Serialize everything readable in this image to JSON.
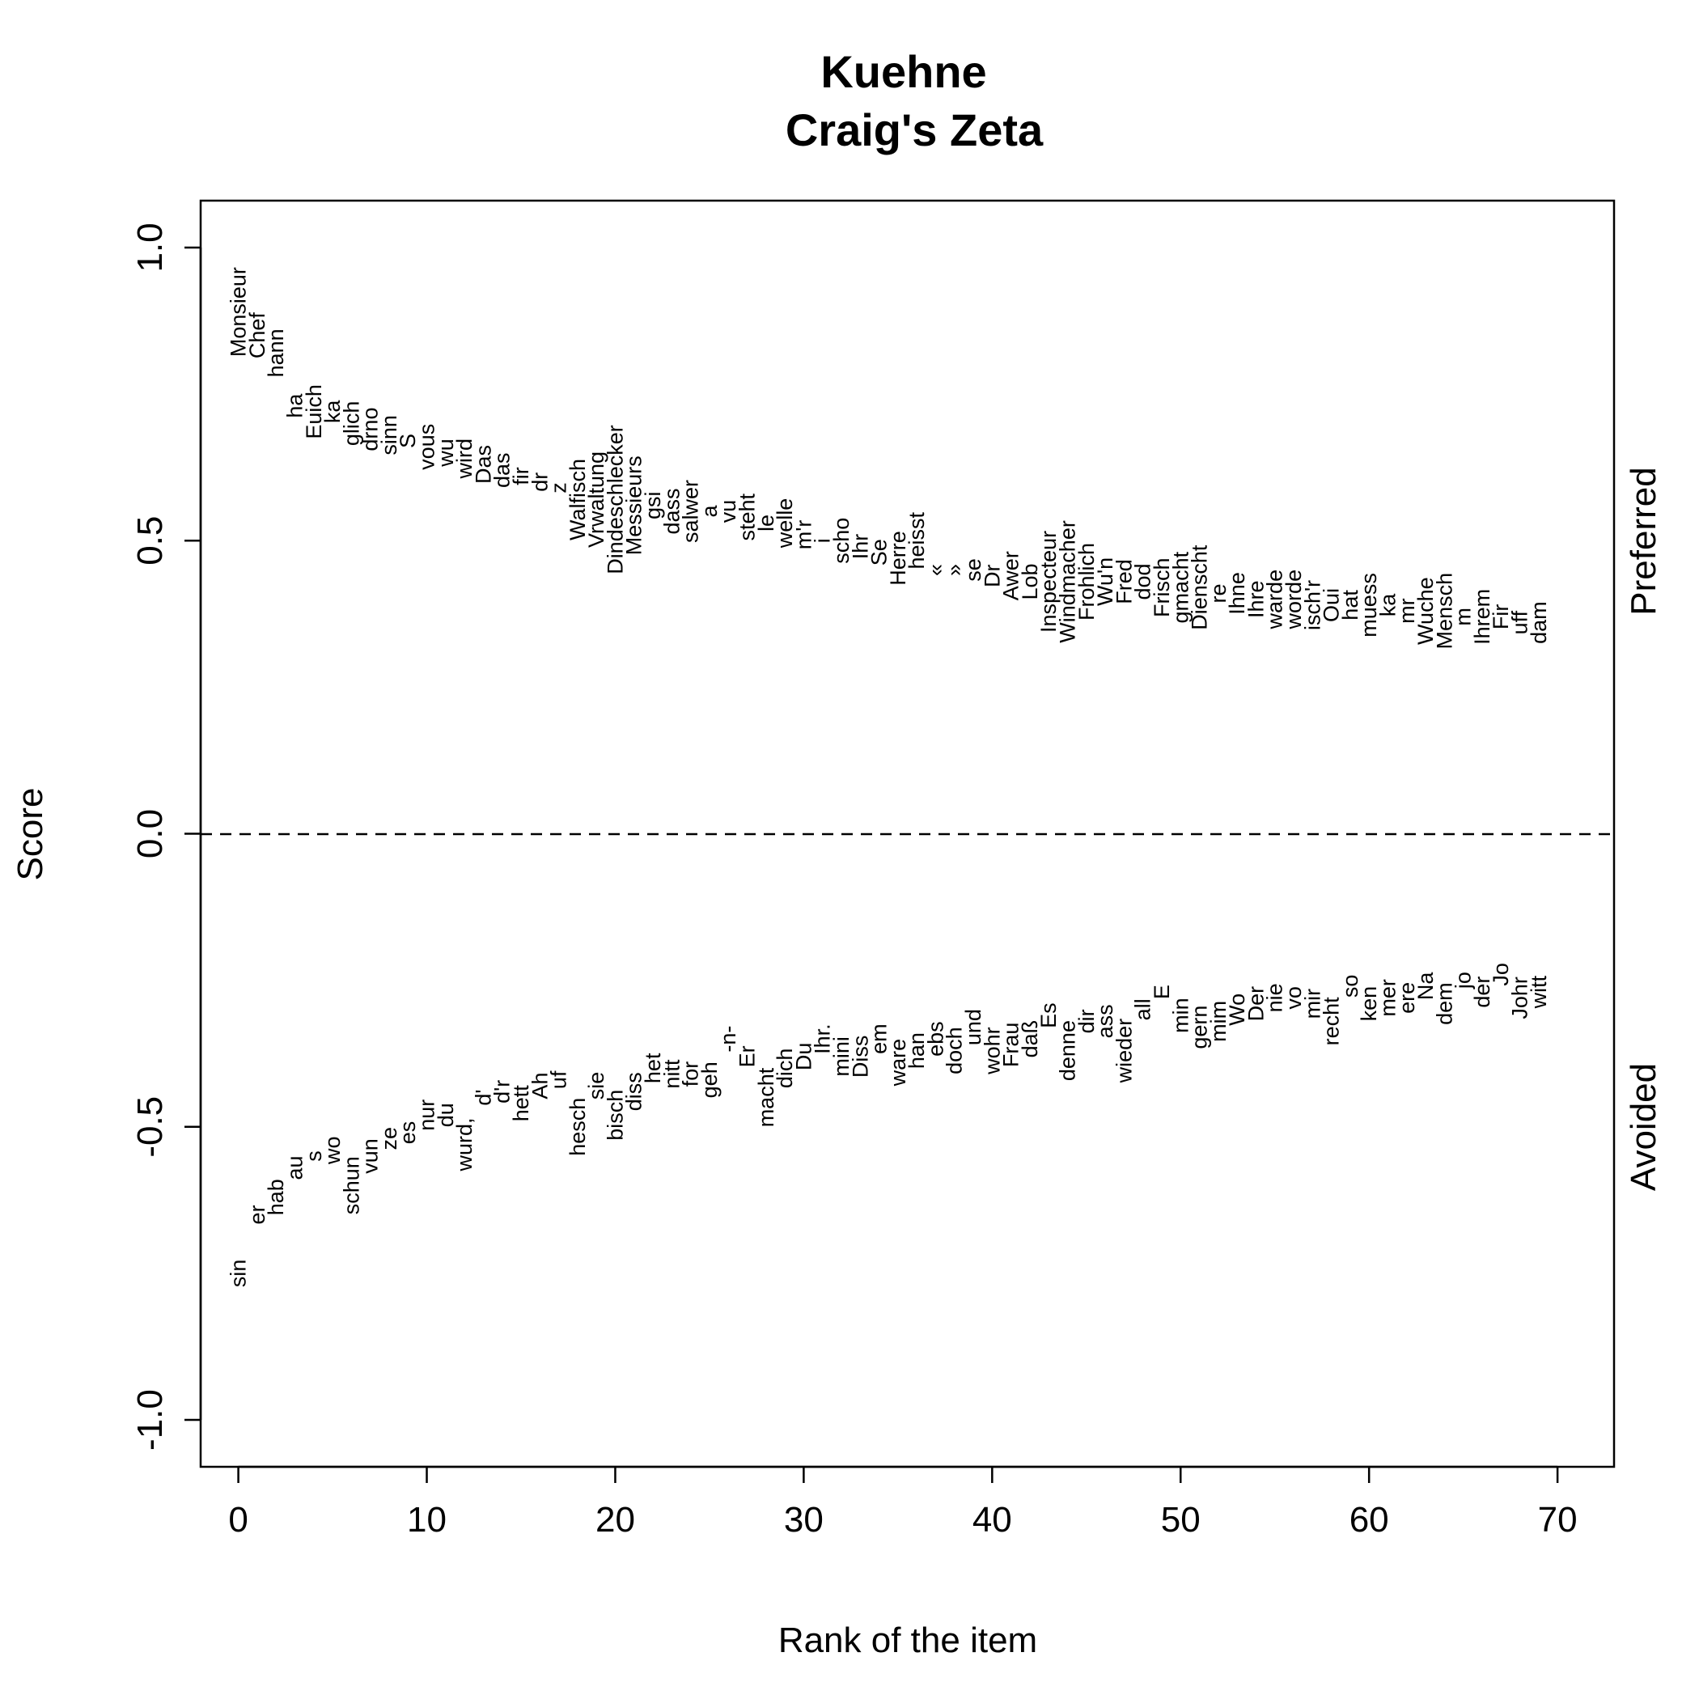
{
  "chart_data": {
    "type": "scatter",
    "title": "Kuehne",
    "subtitle": "Craig's Zeta",
    "xlabel": "Rank of the item",
    "ylabel": "Score",
    "right_labels": {
      "top": "Preferred",
      "bottom": "Avoided"
    },
    "xlim": [
      -2,
      73
    ],
    "ylim": [
      -1.08,
      1.08
    ],
    "x_ticks": [
      0,
      10,
      20,
      30,
      40,
      50,
      60,
      70
    ],
    "x_tick_labels": [
      "0",
      "10",
      "20",
      "30",
      "40",
      "50",
      "60",
      "70"
    ],
    "y_ticks": [
      -1.0,
      -0.5,
      0.0,
      0.5,
      1.0
    ],
    "y_tick_labels": [
      "-1.0",
      "-0.5",
      "0.0",
      "0.5",
      "1.0"
    ],
    "reference_line": {
      "y": 0,
      "style": "dashed"
    },
    "series": [
      {
        "name": "Preferred",
        "points": [
          {
            "x": 0,
            "y": 0.89,
            "label": "Monsieur"
          },
          {
            "x": 1,
            "y": 0.85,
            "label": "Chef"
          },
          {
            "x": 2,
            "y": 0.82,
            "label": "hann"
          },
          {
            "x": 3,
            "y": 0.73,
            "label": "ha"
          },
          {
            "x": 4,
            "y": 0.72,
            "label": "Euich"
          },
          {
            "x": 5,
            "y": 0.72,
            "label": "ka"
          },
          {
            "x": 6,
            "y": 0.7,
            "label": "glich"
          },
          {
            "x": 7,
            "y": 0.69,
            "label": "drno"
          },
          {
            "x": 8,
            "y": 0.68,
            "label": "sinn"
          },
          {
            "x": 9,
            "y": 0.67,
            "label": "S"
          },
          {
            "x": 10,
            "y": 0.66,
            "label": "vous"
          },
          {
            "x": 11,
            "y": 0.65,
            "label": "wu"
          },
          {
            "x": 12,
            "y": 0.64,
            "label": "wird"
          },
          {
            "x": 13,
            "y": 0.63,
            "label": "Das"
          },
          {
            "x": 14,
            "y": 0.62,
            "label": "das"
          },
          {
            "x": 15,
            "y": 0.61,
            "label": "fir"
          },
          {
            "x": 16,
            "y": 0.6,
            "label": "dr"
          },
          {
            "x": 17,
            "y": 0.59,
            "label": "z"
          },
          {
            "x": 18,
            "y": 0.57,
            "label": "Walfisch"
          },
          {
            "x": 19,
            "y": 0.57,
            "label": "Vrwaltung"
          },
          {
            "x": 20,
            "y": 0.57,
            "label": "Dindeschlecker"
          },
          {
            "x": 21,
            "y": 0.56,
            "label": "Messieurs"
          },
          {
            "x": 22,
            "y": 0.56,
            "label": "gsi"
          },
          {
            "x": 23,
            "y": 0.55,
            "label": "dass"
          },
          {
            "x": 24,
            "y": 0.55,
            "label": "salwer"
          },
          {
            "x": 25,
            "y": 0.55,
            "label": "a"
          },
          {
            "x": 26,
            "y": 0.55,
            "label": "vu"
          },
          {
            "x": 27,
            "y": 0.54,
            "label": "steht"
          },
          {
            "x": 28,
            "y": 0.53,
            "label": "le"
          },
          {
            "x": 29,
            "y": 0.53,
            "label": "welle"
          },
          {
            "x": 30,
            "y": 0.51,
            "label": "m'r"
          },
          {
            "x": 31,
            "y": 0.5,
            "label": "i"
          },
          {
            "x": 32,
            "y": 0.5,
            "label": "scho"
          },
          {
            "x": 33,
            "y": 0.49,
            "label": "Ihr"
          },
          {
            "x": 34,
            "y": 0.48,
            "label": "Se"
          },
          {
            "x": 35,
            "y": 0.47,
            "label": "Herre"
          },
          {
            "x": 36,
            "y": 0.5,
            "label": "heisst"
          },
          {
            "x": 37,
            "y": 0.45,
            "label": "«"
          },
          {
            "x": 38,
            "y": 0.45,
            "label": "»"
          },
          {
            "x": 39,
            "y": 0.45,
            "label": "se"
          },
          {
            "x": 40,
            "y": 0.44,
            "label": "Dr"
          },
          {
            "x": 41,
            "y": 0.44,
            "label": "Awer"
          },
          {
            "x": 42,
            "y": 0.43,
            "label": "Lob"
          },
          {
            "x": 43,
            "y": 0.43,
            "label": "Inspecteur"
          },
          {
            "x": 44,
            "y": 0.43,
            "label": "Windmacher"
          },
          {
            "x": 45,
            "y": 0.43,
            "label": "Frohlich"
          },
          {
            "x": 46,
            "y": 0.43,
            "label": "Wu'n"
          },
          {
            "x": 47,
            "y": 0.43,
            "label": "Fred"
          },
          {
            "x": 48,
            "y": 0.43,
            "label": "dod"
          },
          {
            "x": 49,
            "y": 0.42,
            "label": "Frisch"
          },
          {
            "x": 50,
            "y": 0.42,
            "label": "gmacht"
          },
          {
            "x": 51,
            "y": 0.42,
            "label": "Dienscht"
          },
          {
            "x": 52,
            "y": 0.41,
            "label": "re"
          },
          {
            "x": 53,
            "y": 0.41,
            "label": "Ihne"
          },
          {
            "x": 54,
            "y": 0.4,
            "label": "Ihre"
          },
          {
            "x": 55,
            "y": 0.4,
            "label": "warde"
          },
          {
            "x": 56,
            "y": 0.4,
            "label": "worde"
          },
          {
            "x": 57,
            "y": 0.39,
            "label": "isch'r"
          },
          {
            "x": 58,
            "y": 0.39,
            "label": "Oui"
          },
          {
            "x": 59,
            "y": 0.39,
            "label": "hat"
          },
          {
            "x": 60,
            "y": 0.39,
            "label": "muess"
          },
          {
            "x": 61,
            "y": 0.39,
            "label": "ka"
          },
          {
            "x": 62,
            "y": 0.38,
            "label": "mr"
          },
          {
            "x": 63,
            "y": 0.38,
            "label": "Wuche"
          },
          {
            "x": 64,
            "y": 0.38,
            "label": "Mensch"
          },
          {
            "x": 65,
            "y": 0.37,
            "label": "m"
          },
          {
            "x": 66,
            "y": 0.37,
            "label": "Ihrem"
          },
          {
            "x": 67,
            "y": 0.37,
            "label": "Fir"
          },
          {
            "x": 68,
            "y": 0.36,
            "label": "uff"
          },
          {
            "x": 69,
            "y": 0.36,
            "label": "dam"
          }
        ]
      },
      {
        "name": "Avoided",
        "points": [
          {
            "x": 0,
            "y": -0.75,
            "label": "sin"
          },
          {
            "x": 1,
            "y": -0.65,
            "label": "er"
          },
          {
            "x": 2,
            "y": -0.62,
            "label": "hab"
          },
          {
            "x": 3,
            "y": -0.57,
            "label": "au"
          },
          {
            "x": 4,
            "y": -0.55,
            "label": "s"
          },
          {
            "x": 5,
            "y": -0.54,
            "label": "wo"
          },
          {
            "x": 6,
            "y": -0.6,
            "label": "schun"
          },
          {
            "x": 7,
            "y": -0.55,
            "label": "vun"
          },
          {
            "x": 8,
            "y": -0.52,
            "label": "ze"
          },
          {
            "x": 9,
            "y": -0.51,
            "label": "es"
          },
          {
            "x": 10,
            "y": -0.48,
            "label": "nur"
          },
          {
            "x": 11,
            "y": -0.48,
            "label": "du"
          },
          {
            "x": 12,
            "y": -0.53,
            "label": "wurd,"
          },
          {
            "x": 13,
            "y": -0.45,
            "label": "d'"
          },
          {
            "x": 14,
            "y": -0.44,
            "label": "d'r"
          },
          {
            "x": 15,
            "y": -0.46,
            "label": "hett"
          },
          {
            "x": 16,
            "y": -0.43,
            "label": "Ah"
          },
          {
            "x": 17,
            "y": -0.42,
            "label": "uf"
          },
          {
            "x": 18,
            "y": -0.5,
            "label": "hesch"
          },
          {
            "x": 19,
            "y": -0.43,
            "label": "sie"
          },
          {
            "x": 20,
            "y": -0.48,
            "label": "bisch"
          },
          {
            "x": 21,
            "y": -0.44,
            "label": "diss"
          },
          {
            "x": 22,
            "y": -0.4,
            "label": "het"
          },
          {
            "x": 23,
            "y": -0.41,
            "label": "nitt"
          },
          {
            "x": 24,
            "y": -0.41,
            "label": "for"
          },
          {
            "x": 25,
            "y": -0.42,
            "label": "geh"
          },
          {
            "x": 26,
            "y": -0.35,
            "label": "-n-"
          },
          {
            "x": 27,
            "y": -0.38,
            "label": "Er"
          },
          {
            "x": 28,
            "y": -0.45,
            "label": "macht"
          },
          {
            "x": 29,
            "y": -0.4,
            "label": "dich"
          },
          {
            "x": 30,
            "y": -0.38,
            "label": "Du"
          },
          {
            "x": 31,
            "y": -0.35,
            "label": "Ihr."
          },
          {
            "x": 32,
            "y": -0.38,
            "label": "mini"
          },
          {
            "x": 33,
            "y": -0.38,
            "label": "Diss"
          },
          {
            "x": 34,
            "y": -0.35,
            "label": "em"
          },
          {
            "x": 35,
            "y": -0.39,
            "label": "ware"
          },
          {
            "x": 36,
            "y": -0.37,
            "label": "han"
          },
          {
            "x": 37,
            "y": -0.35,
            "label": "ebs"
          },
          {
            "x": 38,
            "y": -0.37,
            "label": "doch"
          },
          {
            "x": 39,
            "y": -0.33,
            "label": "und"
          },
          {
            "x": 40,
            "y": -0.37,
            "label": "wohr"
          },
          {
            "x": 41,
            "y": -0.36,
            "label": "Frau"
          },
          {
            "x": 42,
            "y": -0.35,
            "label": "daß"
          },
          {
            "x": 43,
            "y": -0.31,
            "label": "Es"
          },
          {
            "x": 44,
            "y": -0.37,
            "label": "denne"
          },
          {
            "x": 45,
            "y": -0.32,
            "label": "dir"
          },
          {
            "x": 46,
            "y": -0.32,
            "label": "ass"
          },
          {
            "x": 47,
            "y": -0.37,
            "label": "wieder"
          },
          {
            "x": 48,
            "y": -0.3,
            "label": "all"
          },
          {
            "x": 49,
            "y": -0.27,
            "label": "E"
          },
          {
            "x": 50,
            "y": -0.31,
            "label": "min"
          },
          {
            "x": 51,
            "y": -0.33,
            "label": "gern"
          },
          {
            "x": 52,
            "y": -0.32,
            "label": "mim"
          },
          {
            "x": 53,
            "y": -0.3,
            "label": "Wo"
          },
          {
            "x": 54,
            "y": -0.29,
            "label": "Der"
          },
          {
            "x": 55,
            "y": -0.28,
            "label": "nie"
          },
          {
            "x": 56,
            "y": -0.28,
            "label": "vo"
          },
          {
            "x": 57,
            "y": -0.29,
            "label": "mir"
          },
          {
            "x": 58,
            "y": -0.32,
            "label": "recht"
          },
          {
            "x": 59,
            "y": -0.26,
            "label": "so"
          },
          {
            "x": 60,
            "y": -0.29,
            "label": "ken"
          },
          {
            "x": 61,
            "y": -0.28,
            "label": "mer"
          },
          {
            "x": 62,
            "y": -0.28,
            "label": "ere"
          },
          {
            "x": 63,
            "y": -0.26,
            "label": "Na"
          },
          {
            "x": 64,
            "y": -0.29,
            "label": "dem"
          },
          {
            "x": 65,
            "y": -0.25,
            "label": "jo"
          },
          {
            "x": 66,
            "y": -0.27,
            "label": "der"
          },
          {
            "x": 67,
            "y": -0.24,
            "label": "Jo"
          },
          {
            "x": 68,
            "y": -0.28,
            "label": "Johr"
          },
          {
            "x": 69,
            "y": -0.27,
            "label": "witt"
          }
        ]
      }
    ]
  }
}
